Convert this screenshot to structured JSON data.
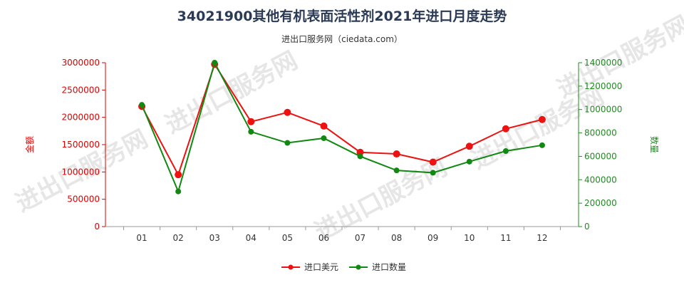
{
  "chart_data": {
    "type": "line",
    "title": "34021900其他有机表面活性剂2021年进口月度走势",
    "subtitle": "进出口服务网（ciedata.com）",
    "categories": [
      "01",
      "02",
      "03",
      "04",
      "05",
      "06",
      "07",
      "08",
      "09",
      "10",
      "11",
      "12"
    ],
    "left_axis": {
      "label": "金额",
      "ylim": [
        0,
        3000000
      ],
      "ticks": [
        "0",
        "500000",
        "1000000",
        "1500000",
        "2000000",
        "2500000",
        "3000000"
      ],
      "color": "#dd0000"
    },
    "right_axis": {
      "label": "数量",
      "ylim": [
        0,
        1400000
      ],
      "ticks": [
        "0",
        "200000",
        "400000",
        "600000",
        "800000",
        "1000000",
        "1200000",
        "1400000"
      ],
      "color": "#228B22"
    },
    "series": [
      {
        "name": "进口美元",
        "axis": "left",
        "color": "#ee1111",
        "values": [
          2200000,
          950000,
          2970000,
          1920000,
          2090000,
          1840000,
          1360000,
          1330000,
          1180000,
          1470000,
          1790000,
          1960000
        ]
      },
      {
        "name": "进口数量",
        "axis": "right",
        "color": "#118811",
        "values": [
          1040000,
          300000,
          1400000,
          810000,
          715000,
          755000,
          600000,
          480000,
          460000,
          555000,
          645000,
          695000
        ]
      }
    ],
    "grid": false,
    "legend": "bottom-center"
  },
  "watermark": "进出口服务网"
}
